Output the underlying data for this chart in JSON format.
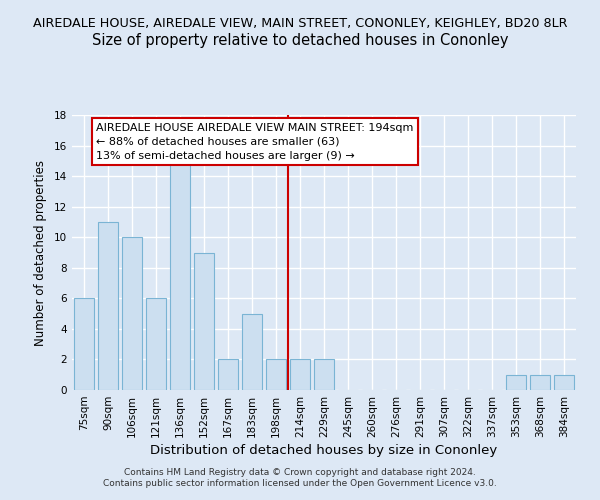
{
  "title_main": "AIREDALE HOUSE, AIREDALE VIEW, MAIN STREET, CONONLEY, KEIGHLEY, BD20 8LR",
  "title_sub": "Size of property relative to detached houses in Cononley",
  "xlabel": "Distribution of detached houses by size in Cononley",
  "ylabel": "Number of detached properties",
  "bar_labels": [
    "75sqm",
    "90sqm",
    "106sqm",
    "121sqm",
    "136sqm",
    "152sqm",
    "167sqm",
    "183sqm",
    "198sqm",
    "214sqm",
    "229sqm",
    "245sqm",
    "260sqm",
    "276sqm",
    "291sqm",
    "307sqm",
    "322sqm",
    "337sqm",
    "353sqm",
    "368sqm",
    "384sqm"
  ],
  "bar_values": [
    6,
    11,
    10,
    6,
    15,
    9,
    2,
    5,
    2,
    2,
    2,
    0,
    0,
    0,
    0,
    0,
    0,
    0,
    1,
    1,
    1
  ],
  "bar_color": "#ccdff0",
  "bar_edge_color": "#7ab4d4",
  "vline_x_idx": 8,
  "vline_color": "#cc0000",
  "annotation_line1": "AIREDALE HOUSE AIREDALE VIEW MAIN STREET: 194sqm",
  "annotation_line2": "← 88% of detached houses are smaller (63)",
  "annotation_line3": "13% of semi-detached houses are larger (9) →",
  "annotation_box_color": "#ffffff",
  "annotation_box_edge": "#cc0000",
  "ylim": [
    0,
    18
  ],
  "yticks": [
    0,
    2,
    4,
    6,
    8,
    10,
    12,
    14,
    16,
    18
  ],
  "footer_text": "Contains HM Land Registry data © Crown copyright and database right 2024.\nContains public sector information licensed under the Open Government Licence v3.0.",
  "bg_color": "#dde8f5",
  "plot_bg_color": "#dde8f5",
  "grid_color": "#ffffff",
  "title_main_fontsize": 9.2,
  "title_sub_fontsize": 10.5,
  "xlabel_fontsize": 9.5,
  "ylabel_fontsize": 8.5,
  "tick_fontsize": 7.5,
  "footer_fontsize": 6.5,
  "annot_fontsize": 8.0
}
